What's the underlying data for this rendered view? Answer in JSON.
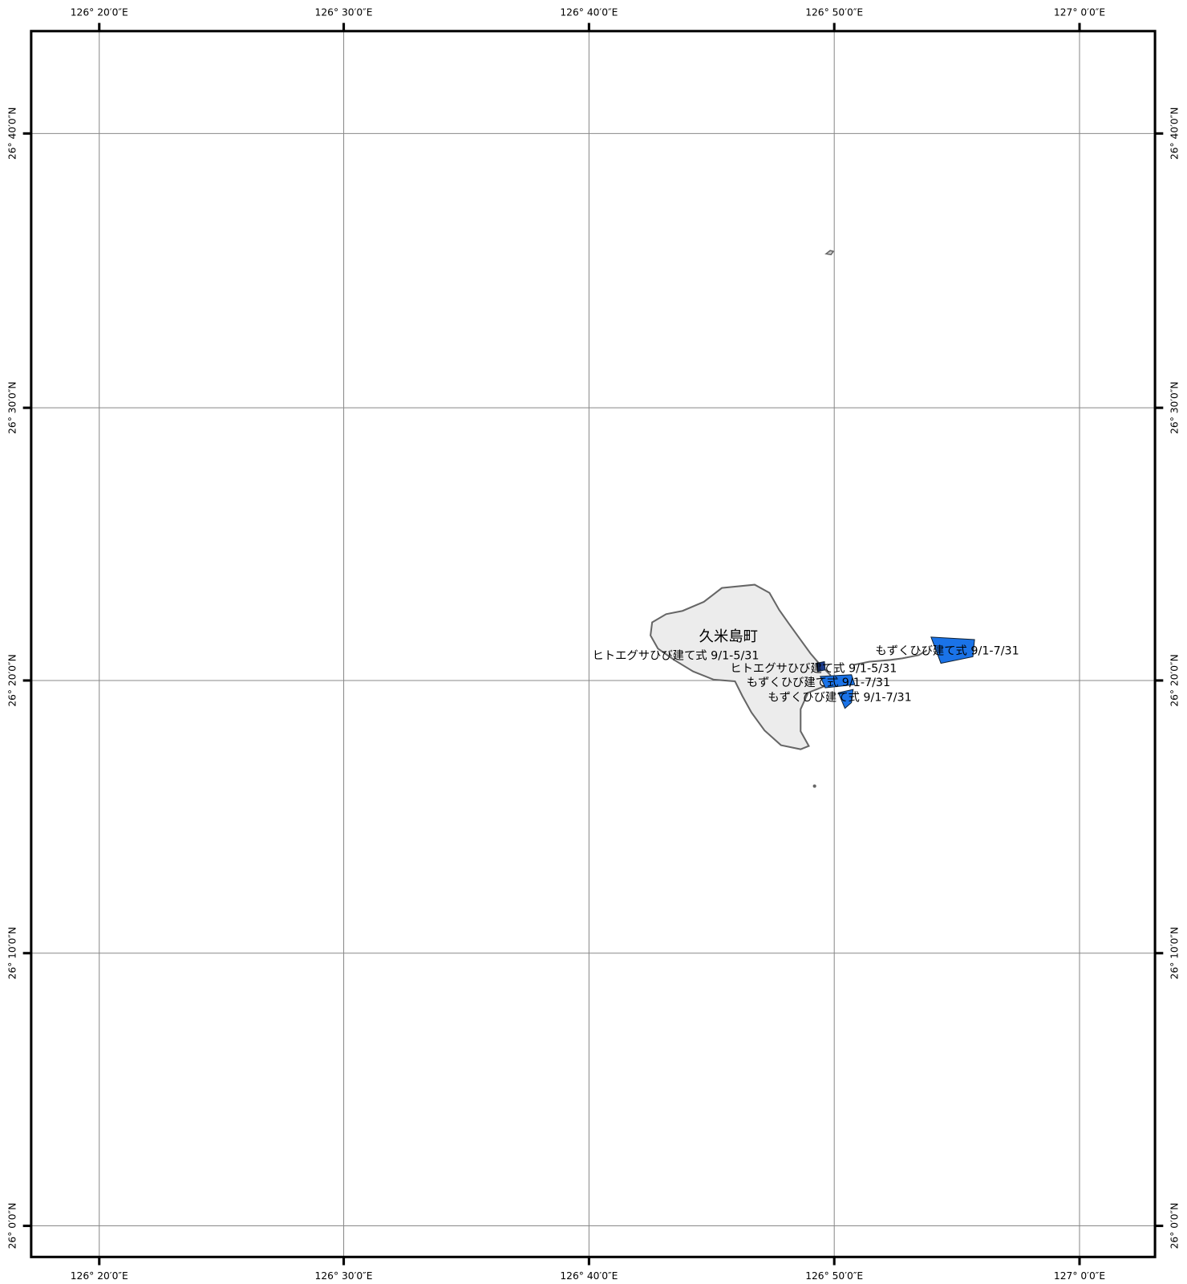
{
  "longitude_labels": [
    "126° 20′0″E",
    "126° 30′0″E",
    "126° 40′0″E",
    "126° 50′0″E",
    "127° 0′0″E"
  ],
  "latitude_labels": [
    "26° 40′0″N",
    "26° 30′0″N",
    "26° 20′0″N",
    "26° 10′0″N",
    "26° 0′0″N"
  ],
  "place_name": "久米島町",
  "fishery_labels": [
    "ヒトエグサひび建て式 9/1-5/31",
    "ヒトエグサひび建て式 9/1-5/31",
    "もずくひび建て式 9/1-7/31",
    "もずくひび建て式 9/1-7/31",
    "もずくひび建て式 9/1-7/31"
  ]
}
